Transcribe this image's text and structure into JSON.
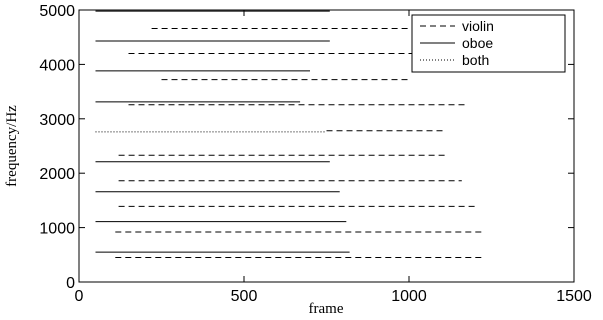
{
  "chart_data": {
    "type": "line",
    "title": "",
    "xlabel": "frame",
    "ylabel": "frequency/Hz",
    "xlim": [
      0,
      1500
    ],
    "ylim": [
      0,
      5000
    ],
    "xticks": [
      "0",
      "500",
      "1000",
      "1500"
    ],
    "yticks": [
      "0",
      "1000",
      "2000",
      "3000",
      "4000",
      "5000"
    ],
    "grid": false,
    "legend_position": "top-right",
    "series": [
      {
        "name": "violin",
        "style": "dashed",
        "segments": [
          {
            "x": [
              110,
              1230
            ],
            "y": [
              450,
              450
            ]
          },
          {
            "x": [
              110,
              1220
            ],
            "y": [
              920,
              920
            ]
          },
          {
            "x": [
              120,
              1200
            ],
            "y": [
              1390,
              1390
            ]
          },
          {
            "x": [
              120,
              1160
            ],
            "y": [
              1860,
              1860
            ]
          },
          {
            "x": [
              120,
              1110
            ],
            "y": [
              2330,
              2330
            ]
          },
          {
            "x": [
              750,
              1110
            ],
            "y": [
              2780,
              2780
            ]
          },
          {
            "x": [
              150,
              1170
            ],
            "y": [
              3260,
              3260
            ]
          },
          {
            "x": [
              250,
              1000
            ],
            "y": [
              3720,
              3720
            ]
          },
          {
            "x": [
              150,
              1020
            ],
            "y": [
              4200,
              4200
            ]
          },
          {
            "x": [
              220,
              1020
            ],
            "y": [
              4660,
              4660
            ]
          }
        ]
      },
      {
        "name": "oboe",
        "style": "solid",
        "segments": [
          {
            "x": [
              50,
              820
            ],
            "y": [
              550,
              550
            ]
          },
          {
            "x": [
              50,
              810
            ],
            "y": [
              1110,
              1110
            ]
          },
          {
            "x": [
              50,
              790
            ],
            "y": [
              1660,
              1660
            ]
          },
          {
            "x": [
              50,
              760
            ],
            "y": [
              2210,
              2210
            ]
          },
          {
            "x": [
              50,
              670
            ],
            "y": [
              3310,
              3310
            ]
          },
          {
            "x": [
              50,
              700
            ],
            "y": [
              3880,
              3880
            ]
          },
          {
            "x": [
              50,
              760
            ],
            "y": [
              4430,
              4430
            ]
          },
          {
            "x": [
              50,
              760
            ],
            "y": [
              4980,
              4980
            ]
          }
        ]
      },
      {
        "name": "both",
        "style": "dotted",
        "segments": [
          {
            "x": [
              50,
              750
            ],
            "y": [
              2760,
              2760
            ]
          }
        ]
      }
    ]
  }
}
